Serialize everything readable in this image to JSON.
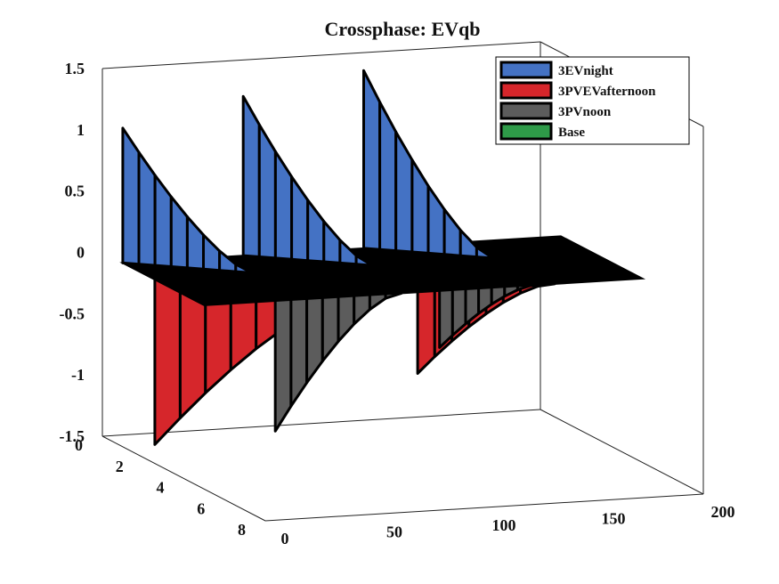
{
  "chart_data": {
    "type": "surface3d",
    "title": "Crossphase: EVqb",
    "xlabel": "",
    "ylabel": "",
    "zlabel": "",
    "xlim": [
      0,
      200
    ],
    "ylim": [
      0,
      8
    ],
    "zlim": [
      -1.5,
      1.5
    ],
    "x_ticks": [
      "0",
      "50",
      "100",
      "150",
      "200"
    ],
    "y_ticks": [
      "0",
      "2",
      "4",
      "6",
      "8"
    ],
    "z_ticks": [
      "1.5",
      "1",
      "0.5",
      "0",
      "-0.5",
      "-1",
      "-1.5"
    ],
    "legend_position": "top-right",
    "series": [
      {
        "name": "3EVnight",
        "color": "#4472c4",
        "spikes": [
          {
            "x": 0,
            "peak": 1.1,
            "width": 45
          },
          {
            "x": 55,
            "peak": 1.3,
            "width": 45
          },
          {
            "x": 110,
            "peak": 1.45,
            "width": 45
          }
        ]
      },
      {
        "name": "3PVEVafternoon",
        "color": "#d6262b",
        "spikes": [
          {
            "x": 10,
            "peak": -1.45,
            "width": 60
          },
          {
            "x": 130,
            "peak": -1.0,
            "width": 30
          }
        ]
      },
      {
        "name": "3PVnoon",
        "color": "#5c5c5c",
        "spikes": [
          {
            "x": 65,
            "peak": -1.4,
            "width": 25
          },
          {
            "x": 140,
            "peak": -0.8,
            "width": 15
          }
        ]
      },
      {
        "name": "Base",
        "color": "#2e9a48",
        "spikes": []
      }
    ]
  }
}
